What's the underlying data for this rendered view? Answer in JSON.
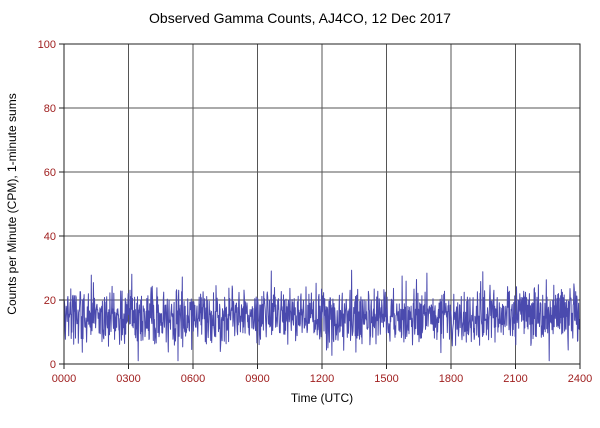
{
  "chart_data": {
    "type": "line",
    "title": "Observed Gamma Counts, AJ4CO, 12 Dec 2017",
    "xlabel": "Time (UTC)",
    "ylabel": "Counts per Minute (CPM), 1-minute sums",
    "x_tick_labels": [
      "0000",
      "0300",
      "0600",
      "0900",
      "1200",
      "1500",
      "1800",
      "2100",
      "2400"
    ],
    "x_tick_minutes": [
      0,
      180,
      360,
      540,
      720,
      900,
      1080,
      1260,
      1440
    ],
    "y_ticks": [
      0,
      20,
      40,
      60,
      80,
      100
    ],
    "y_tick_labels": [
      "0",
      "20",
      "40",
      "60",
      "80",
      "100"
    ],
    "ylim": [
      0,
      100
    ],
    "xlim_minutes": [
      0,
      1440
    ],
    "grid": true,
    "legend": "none",
    "colors": {
      "series": "#4a4aae",
      "tick_label": "#a02020",
      "grid": "#555555",
      "frame": "#222222",
      "title": "#000000",
      "background": "#ffffff"
    },
    "series": {
      "name": "gamma_counts_cpm",
      "n_points": 1440,
      "sampling": "1-minute sums",
      "approx_mean": 15,
      "approx_std": 4.3,
      "observed_min": 1,
      "observed_max": 31,
      "noise_seed": 20171212
    }
  }
}
